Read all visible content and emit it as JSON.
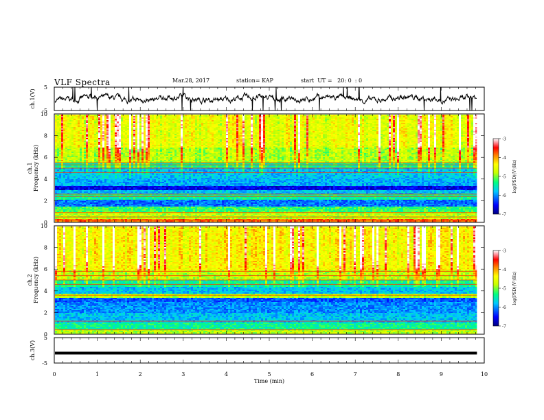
{
  "header": {
    "title": "VLF Spectra",
    "date": "Mar.28, 2017",
    "station": "station= KAP",
    "start_ut": "start  UT =   20: 0  : 0"
  },
  "colors": {
    "cmap": [
      "#000080",
      "#0000ff",
      "#00c8ff",
      "#00ff80",
      "#c8ff00",
      "#ffff00",
      "#ff8000",
      "#ff0000",
      "#ff96a0",
      "#ffffff"
    ],
    "trace": "#000000",
    "axis": "#000000"
  },
  "chart_data": [
    {
      "type": "line",
      "name": "ch1-waveform",
      "ylabel": "ch.1(V)",
      "ylim": [
        -5,
        5
      ],
      "yticks": [
        "5",
        "-5"
      ],
      "xlim": [
        0,
        10
      ],
      "data_end_min": 9.83,
      "approx_range": [
        -1.5,
        2
      ]
    },
    {
      "type": "heatmap",
      "name": "ch1-spectrogram",
      "ylabel": "ch.1\nFrequency  (kHz)",
      "ylim": [
        0,
        10
      ],
      "yticks": [
        "0",
        "2",
        "4",
        "6",
        "8",
        "10"
      ],
      "xlim": [
        0,
        10
      ],
      "data_end_min": 9.83,
      "colorbar": {
        "label": "log(PSD)(V²/Hz)",
        "range": [
          -7,
          -3
        ],
        "ticks": [
          "-3",
          "-4",
          "-5",
          "-6",
          "-7"
        ]
      },
      "bands_khz": [
        {
          "f0": 0,
          "f1": 0.4,
          "level": 0.8
        },
        {
          "f0": 0.4,
          "f1": 1.0,
          "level": 0.55
        },
        {
          "f0": 1.0,
          "f1": 1.5,
          "level": 0.45
        },
        {
          "f0": 1.5,
          "f1": 2.2,
          "level": 0.22
        },
        {
          "f0": 2.2,
          "f1": 2.6,
          "level": 0.4
        },
        {
          "f0": 2.6,
          "f1": 3.0,
          "level": 0.3
        },
        {
          "f0": 3.0,
          "f1": 3.4,
          "level": 0.1
        },
        {
          "f0": 3.4,
          "f1": 4.0,
          "level": 0.28
        },
        {
          "f0": 4.0,
          "f1": 5.0,
          "level": 0.3
        },
        {
          "f0": 5.0,
          "f1": 5.6,
          "level": 0.4
        },
        {
          "f0": 5.6,
          "f1": 7.0,
          "level": 0.55
        },
        {
          "f0": 7.0,
          "f1": 10.0,
          "level": 0.62
        }
      ],
      "lines_khz": [
        0.2,
        0.5,
        0.9,
        2.4,
        2.6,
        4.6,
        5.0,
        5.3,
        5.5
      ]
    },
    {
      "type": "heatmap",
      "name": "ch2-spectrogram",
      "ylabel": "ch.2\nFrequency  (kHz)",
      "ylim": [
        0,
        10
      ],
      "yticks": [
        "0",
        "2",
        "4",
        "6",
        "8",
        "10"
      ],
      "xlim": [
        0,
        10
      ],
      "data_end_min": 9.83,
      "colorbar": {
        "label": "log(PSD)(V²/Hz)",
        "range": [
          -7,
          -3
        ],
        "ticks": [
          "-3",
          "-4",
          "-5",
          "-6",
          "-7"
        ]
      },
      "bands_khz": [
        {
          "f0": 0,
          "f1": 0.5,
          "level": 0.55
        },
        {
          "f0": 0.5,
          "f1": 1.2,
          "level": 0.4
        },
        {
          "f0": 1.2,
          "f1": 2.0,
          "level": 0.3
        },
        {
          "f0": 2.0,
          "f1": 3.0,
          "level": 0.25
        },
        {
          "f0": 3.0,
          "f1": 3.4,
          "level": 0.2
        },
        {
          "f0": 3.4,
          "f1": 3.8,
          "level": 0.55
        },
        {
          "f0": 3.8,
          "f1": 4.4,
          "level": 0.3
        },
        {
          "f0": 4.4,
          "f1": 5.0,
          "level": 0.4
        },
        {
          "f0": 5.0,
          "f1": 6.0,
          "level": 0.55
        },
        {
          "f0": 6.0,
          "f1": 10.0,
          "level": 0.65
        }
      ],
      "lines_khz": [
        0.4,
        1.2,
        3.6,
        4.6,
        5.0,
        5.4,
        5.8
      ]
    },
    {
      "type": "line",
      "name": "ch3-waveform",
      "ylabel": "ch.3(V)",
      "ylim": [
        -5,
        5
      ],
      "yticks": [
        "5",
        "-5"
      ],
      "xlim": [
        0,
        10
      ],
      "data_end_min": 9.83,
      "approx_value": 0
    }
  ],
  "xaxis": {
    "label": "Time  (min)",
    "ticks": [
      "0",
      "1",
      "2",
      "3",
      "4",
      "5",
      "6",
      "7",
      "8",
      "9",
      "10"
    ]
  }
}
